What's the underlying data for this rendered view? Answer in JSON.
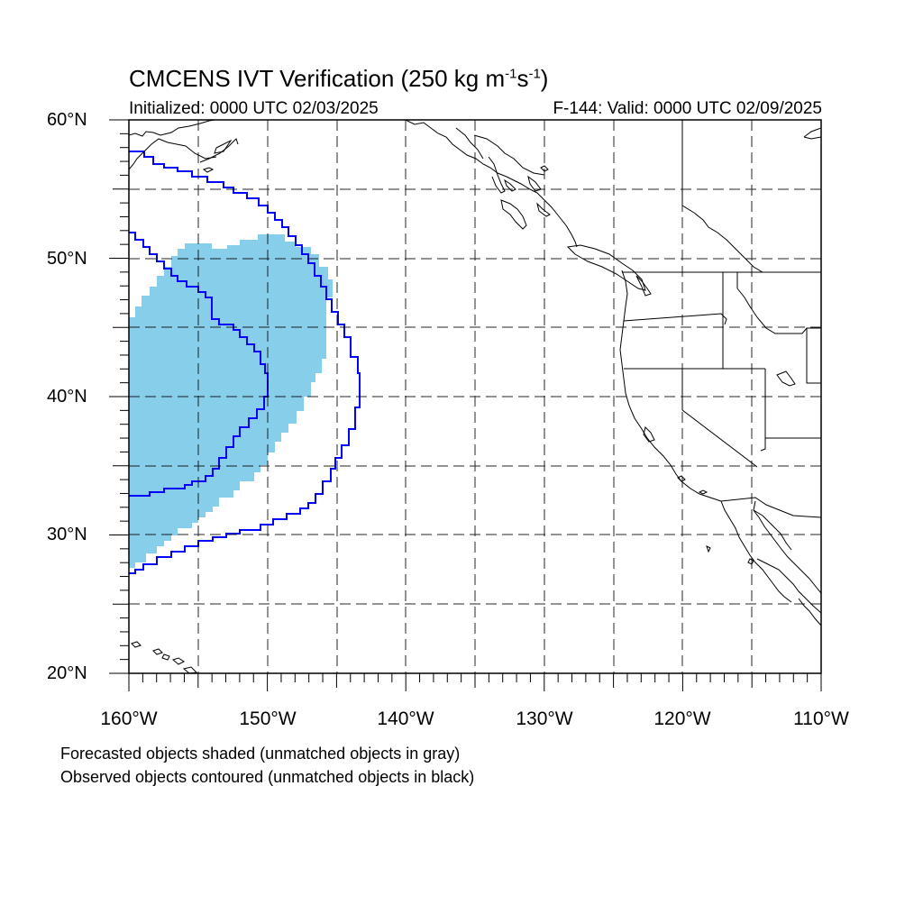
{
  "title": {
    "main": "CMCENS IVT Verification (250 kg m",
    "sup1": "-1",
    "mid": "s",
    "sup2": "-1",
    "end": ")"
  },
  "initialized": "Initialized: 0000 UTC 02/03/2025",
  "valid": "F-144: Valid: 0000 UTC 02/09/2025",
  "lat_labels": [
    "60°N",
    "50°N",
    "40°N",
    "30°N",
    "20°N"
  ],
  "lon_labels": [
    "160°W",
    "150°W",
    "140°W",
    "130°W",
    "120°W",
    "110°W"
  ],
  "notes": [
    "Forecasted objects shaded (unmatched objects in gray)",
    "Observed objects contoured (unmatched objects in black)"
  ],
  "map": {
    "lon_range": [
      -160,
      -110
    ],
    "lat_range": [
      20,
      60
    ],
    "grid": "dashed every 5°",
    "forecast_fill_color": "#87ceeb",
    "observed_contour_color": "#0000ff",
    "coastline_color": "#000000"
  }
}
